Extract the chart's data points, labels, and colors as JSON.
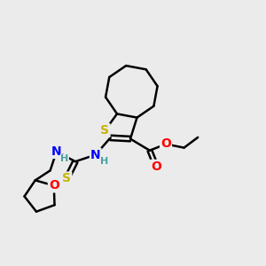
{
  "bg_color": "#ebebeb",
  "atom_colors": {
    "S": "#c8b400",
    "N": "#0000ff",
    "O": "#ff0000",
    "H": "#4aa0a0",
    "C": "#000000"
  },
  "bond_width": 1.8,
  "font_size_atom": 10,
  "font_size_H": 8,
  "xlim": [
    0,
    10
  ],
  "ylim": [
    0,
    10
  ]
}
